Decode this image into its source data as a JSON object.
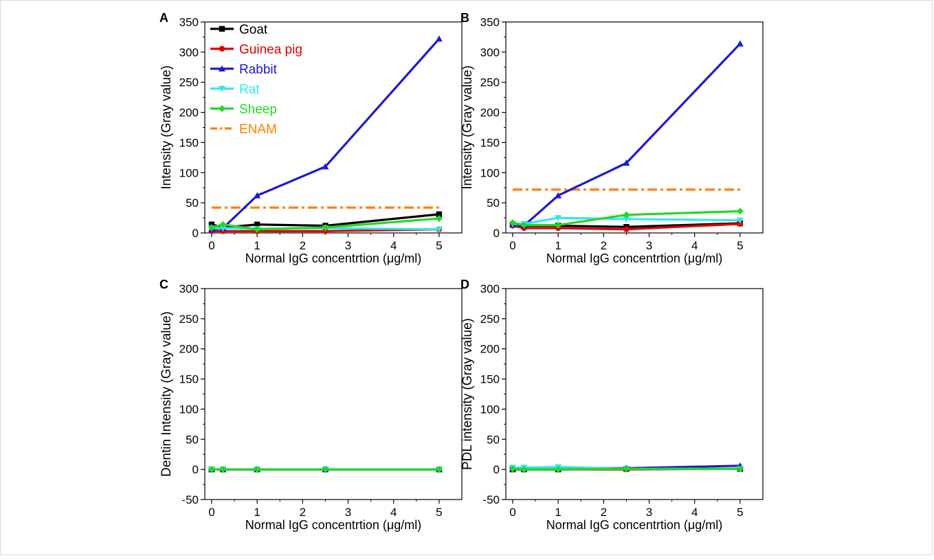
{
  "chart_data": [
    {
      "panel_label": "A",
      "type": "line",
      "title": "",
      "xlabel": "Normal IgG concentrtion (μg/ml)",
      "ylabel": "Intensity (Gray value)",
      "xlim": [
        -0.15,
        5.5
      ],
      "ylim": [
        0,
        350
      ],
      "xticks": [
        0,
        1,
        2,
        3,
        4,
        5
      ],
      "yticks": [
        0,
        50,
        100,
        150,
        200,
        250,
        300,
        350
      ],
      "x": [
        0,
        0.25,
        1,
        2.5,
        5
      ],
      "legend_position": "top-left",
      "series": [
        {
          "name": "Goat",
          "color": "#000000",
          "marker": "square",
          "values": [
            14,
            9,
            14,
            12,
            31
          ]
        },
        {
          "name": "Guinea pig",
          "color": "#e00000",
          "marker": "circle",
          "values": [
            3,
            3,
            3,
            3,
            6
          ]
        },
        {
          "name": "Rabbit",
          "color": "#1a1ad6",
          "marker": "triangle-up",
          "values": [
            6,
            8,
            62,
            110,
            322
          ]
        },
        {
          "name": "Rat",
          "color": "#33e6f0",
          "marker": "triangle-down",
          "values": [
            8,
            8,
            7,
            8,
            6
          ]
        },
        {
          "name": "Sheep",
          "color": "#22d822",
          "marker": "diamond",
          "values": [
            9,
            14,
            6,
            9,
            24
          ]
        }
      ],
      "reference_line": {
        "name": "ENAM",
        "color": "#ff8000",
        "style": "dash-dot",
        "value": 42
      }
    },
    {
      "panel_label": "B",
      "type": "line",
      "title": "",
      "xlabel": "Normal IgG concentrtion (μg/ml)",
      "ylabel": "Intensity (Gray value)",
      "xlim": [
        -0.15,
        5.5
      ],
      "ylim": [
        0,
        350
      ],
      "xticks": [
        0,
        1,
        2,
        3,
        4,
        5
      ],
      "yticks": [
        0,
        50,
        100,
        150,
        200,
        250,
        300,
        350
      ],
      "x": [
        0,
        0.25,
        1,
        2.5,
        5
      ],
      "series": [
        {
          "name": "Goat",
          "color": "#000000",
          "marker": "square",
          "values": [
            14,
            12,
            12,
            10,
            16
          ]
        },
        {
          "name": "Guinea pig",
          "color": "#e00000",
          "marker": "circle",
          "values": [
            12,
            8,
            8,
            6,
            15
          ]
        },
        {
          "name": "Rabbit",
          "color": "#1a1ad6",
          "marker": "triangle-up",
          "values": [
            14,
            12,
            62,
            116,
            314
          ]
        },
        {
          "name": "Rat",
          "color": "#33e6f0",
          "marker": "triangle-down",
          "values": [
            15,
            15,
            25,
            23,
            21
          ]
        },
        {
          "name": "Sheep",
          "color": "#22d822",
          "marker": "diamond",
          "values": [
            17,
            13,
            13,
            30,
            36
          ]
        }
      ],
      "reference_line": {
        "name": "ENAM",
        "color": "#ff8000",
        "style": "dash-dot",
        "value": 72
      }
    },
    {
      "panel_label": "C",
      "type": "line",
      "title": "",
      "xlabel": "Normal IgG concentrtion (μg/ml)",
      "ylabel": "Dentin Intensity (Gray value)",
      "xlim": [
        -0.15,
        5.5
      ],
      "ylim": [
        -50,
        300
      ],
      "xticks": [
        0,
        1,
        2,
        3,
        4,
        5
      ],
      "yticks": [
        -50,
        0,
        50,
        100,
        150,
        200,
        250,
        300
      ],
      "x": [
        0,
        0.25,
        1,
        2.5,
        5
      ],
      "series": [
        {
          "name": "Goat",
          "color": "#000000",
          "marker": "square",
          "values": [
            0,
            0,
            0,
            0,
            0
          ]
        },
        {
          "name": "Guinea pig",
          "color": "#e00000",
          "marker": "circle",
          "values": [
            0,
            0,
            0,
            0,
            0
          ]
        },
        {
          "name": "Rabbit",
          "color": "#1a1ad6",
          "marker": "triangle-up",
          "values": [
            0,
            0,
            0,
            0,
            0
          ]
        },
        {
          "name": "Rat",
          "color": "#33e6f0",
          "marker": "triangle-down",
          "values": [
            0,
            0,
            0,
            0,
            0
          ]
        },
        {
          "name": "Sheep",
          "color": "#22d822",
          "marker": "diamond",
          "values": [
            0,
            0,
            0,
            0,
            0
          ]
        }
      ]
    },
    {
      "panel_label": "D",
      "type": "line",
      "title": "",
      "xlabel": "Normal IgG concentrtion (μg/ml)",
      "ylabel": "PDL intensity (Gray value)",
      "xlim": [
        -0.15,
        5.5
      ],
      "ylim": [
        -50,
        300
      ],
      "xticks": [
        0,
        1,
        2,
        3,
        4,
        5
      ],
      "yticks": [
        -50,
        0,
        50,
        100,
        150,
        200,
        250,
        300
      ],
      "x": [
        0,
        0.25,
        1,
        2.5,
        5
      ],
      "series": [
        {
          "name": "Goat",
          "color": "#000000",
          "marker": "square",
          "values": [
            0,
            0,
            0,
            1,
            1
          ]
        },
        {
          "name": "Guinea pig",
          "color": "#e00000",
          "marker": "circle",
          "values": [
            0,
            0,
            0,
            0,
            1
          ]
        },
        {
          "name": "Rabbit",
          "color": "#1a1ad6",
          "marker": "triangle-up",
          "values": [
            1,
            1,
            2,
            2,
            6
          ]
        },
        {
          "name": "Rat",
          "color": "#33e6f0",
          "marker": "triangle-down",
          "values": [
            3,
            3,
            4,
            1,
            1
          ]
        },
        {
          "name": "Sheep",
          "color": "#22d822",
          "marker": "diamond",
          "values": [
            1,
            0,
            0,
            1,
            1
          ]
        }
      ]
    }
  ]
}
